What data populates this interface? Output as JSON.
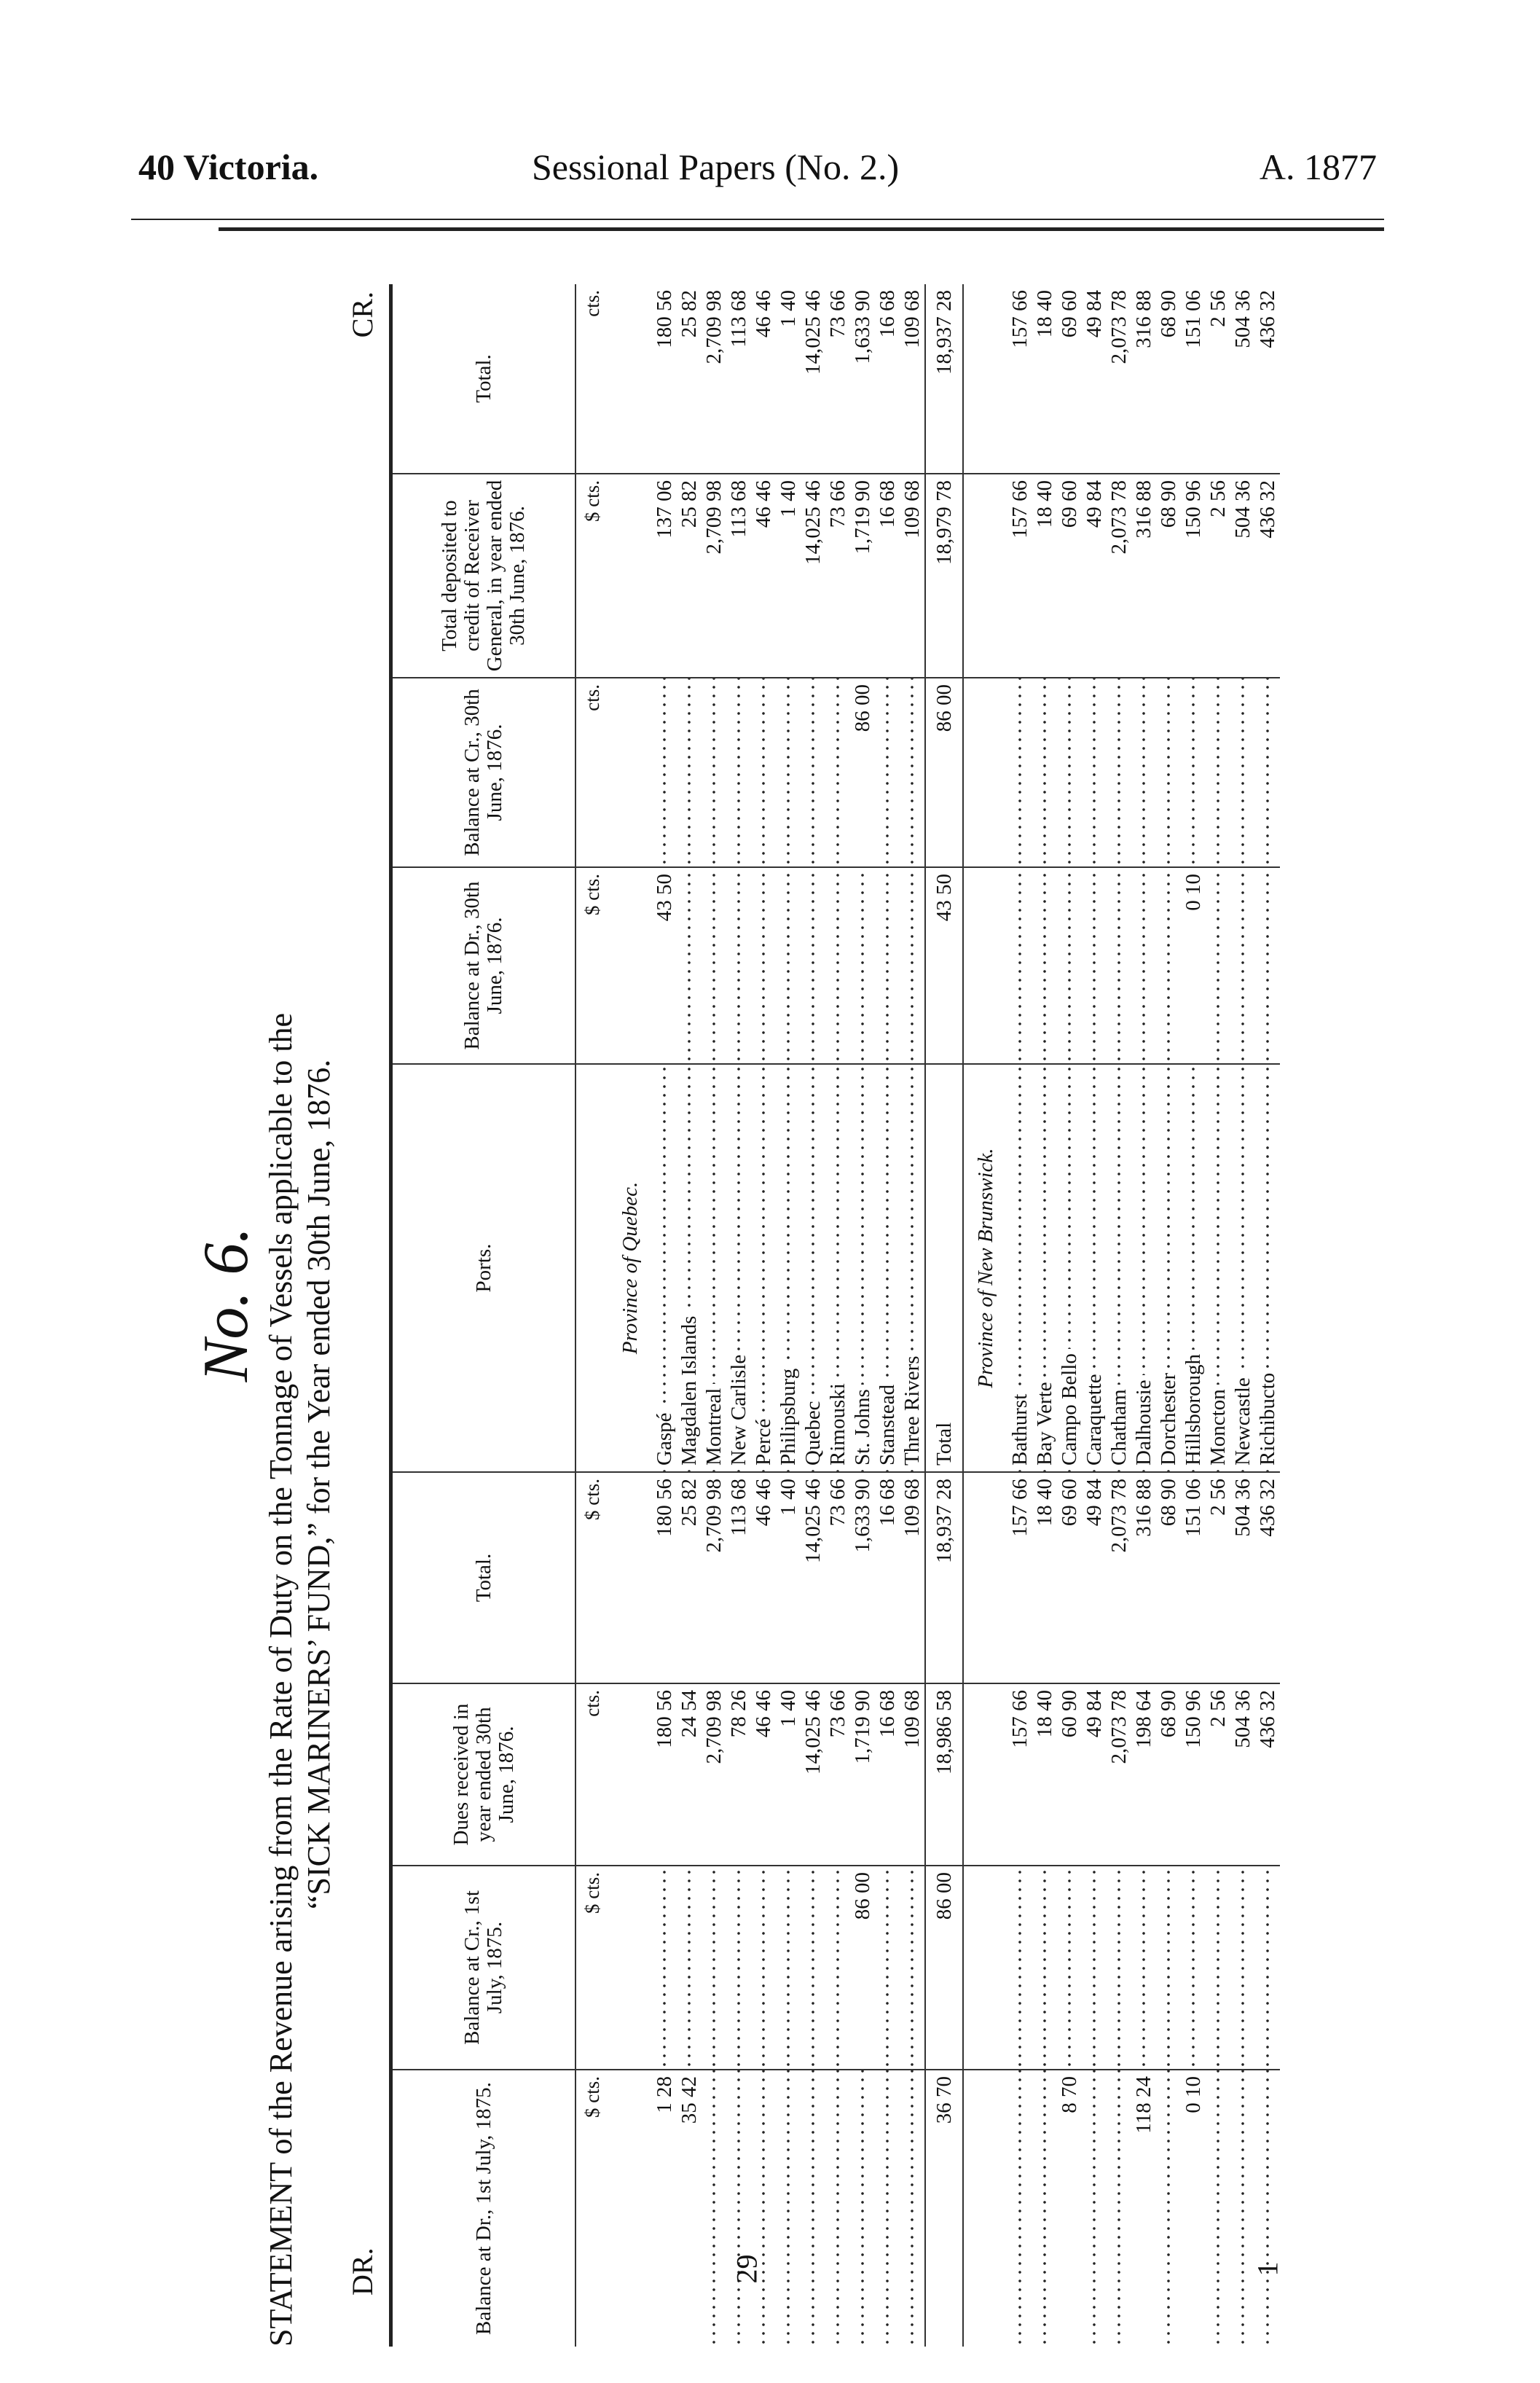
{
  "running_head": {
    "left": "40 Victoria.",
    "center": "Sessional Papers (No. 2.)",
    "right": "A. 1877"
  },
  "title": "No. 6.",
  "statement": {
    "line1": "STATEMENT of the Revenue arising from the Rate of Duty on the Tonnage of Vessels applicable to the",
    "line2": "“SICK MARINERS’ FUND,” for the Year ended 30th June, 1876."
  },
  "dr_label": "DR.",
  "cr_label": "CR.",
  "columns": [
    "Balance at Dr., 1st July, 1875.",
    "Balance at Cr., 1st July, 1875.",
    "Dues received in year ended 30th June, 1876.",
    "Total.",
    "Ports.",
    "Balance at Dr., 30th June, 1876.",
    "Balance at Cr., 30th June, 1876.",
    "Total deposited to credit of Receiver General, in year ended 30th June, 1876.",
    "Total."
  ],
  "units": [
    "$ cts.",
    "$ cts.",
    "cts.",
    "$ cts.",
    "",
    "$ cts.",
    "cts.",
    "$ cts.",
    "cts."
  ],
  "sections": [
    {
      "province": "Province of Quebec.",
      "rows": [
        [
          "1 28",
          "",
          "180 56",
          "180 56",
          "Gaspé",
          "43 50",
          "",
          "137 06",
          "180 56"
        ],
        [
          "35 42",
          "",
          "24 54",
          "25 82",
          "Magdalen Islands",
          "",
          "",
          "25 82",
          "25 82"
        ],
        [
          "",
          "",
          "2,709 98",
          "2,709 98",
          "Montreal",
          "",
          "",
          "2,709 98",
          "2,709 98"
        ],
        [
          "",
          "",
          "78 26",
          "113 68",
          "New Carlisle",
          "",
          "",
          "113 68",
          "113 68"
        ],
        [
          "",
          "",
          "46 46",
          "46 46",
          "Percé",
          "",
          "",
          "46 46",
          "46 46"
        ],
        [
          "",
          "",
          "1 40",
          "1 40",
          "Philipsburg",
          "",
          "",
          "1 40",
          "1 40"
        ],
        [
          "",
          "",
          "14,025 46",
          "14,025 46",
          "Quebec",
          "",
          "",
          "14,025 46",
          "14,025 46"
        ],
        [
          "",
          "",
          "73 66",
          "73 66",
          "Rimouski",
          "",
          "",
          "73 66",
          "73 66"
        ],
        [
          "",
          "86 00",
          "1,719 90",
          "1,633 90",
          "St. Johns",
          "",
          "86 00",
          "1,719 90",
          "1,633 90"
        ],
        [
          "",
          "",
          "16 68",
          "16 68",
          "Stanstead",
          "",
          "",
          "16 68",
          "16 68"
        ],
        [
          "",
          "",
          "109 68",
          "109 68",
          "Three Rivers",
          "",
          "",
          "109 68",
          "109 68"
        ]
      ],
      "total": [
        "36 70",
        "86 00",
        "18,986 58",
        "18,937 28",
        "Total",
        "43 50",
        "86 00",
        "18,979 78",
        "18,937 28"
      ]
    },
    {
      "province": "Province of New Brunswick.",
      "rows": [
        [
          "",
          "",
          "157 66",
          "157 66",
          "Bathurst",
          "",
          "",
          "157 66",
          "157 66"
        ],
        [
          "",
          "",
          "18 40",
          "18 40",
          "Bay Verte",
          "",
          "",
          "18 40",
          "18 40"
        ],
        [
          "8 70",
          "",
          "60 90",
          "69 60",
          "Campo Bello",
          "",
          "",
          "69 60",
          "69 60"
        ],
        [
          "",
          "",
          "49 84",
          "49 84",
          "Caraquette",
          "",
          "",
          "49 84",
          "49 84"
        ],
        [
          "",
          "",
          "2,073 78",
          "2,073 78",
          "Chatham",
          "",
          "",
          "2,073 78",
          "2,073 78"
        ],
        [
          "118 24",
          "",
          "198 64",
          "316 88",
          "Dalhousie",
          "",
          "",
          "316 88",
          "316 88"
        ],
        [
          "",
          "",
          "68 90",
          "68 90",
          "Dorchester",
          "",
          "",
          "68 90",
          "68 90"
        ],
        [
          "0 10",
          "",
          "150 96",
          "151 06",
          "Hillsborough",
          "0 10",
          "",
          "150 96",
          "151 06"
        ],
        [
          "",
          "",
          "2 56",
          "2 56",
          "Moncton",
          "",
          "",
          "2 56",
          "2 56"
        ],
        [
          "",
          "",
          "504 36",
          "504 36",
          "Newcastle",
          "",
          "",
          "504 36",
          "504 36"
        ],
        [
          "",
          "",
          "436 32",
          "436 32",
          "Richibucto",
          "",
          "",
          "436 32",
          "436 32"
        ]
      ]
    }
  ],
  "page_numbers": {
    "left": "29",
    "right": "1"
  }
}
